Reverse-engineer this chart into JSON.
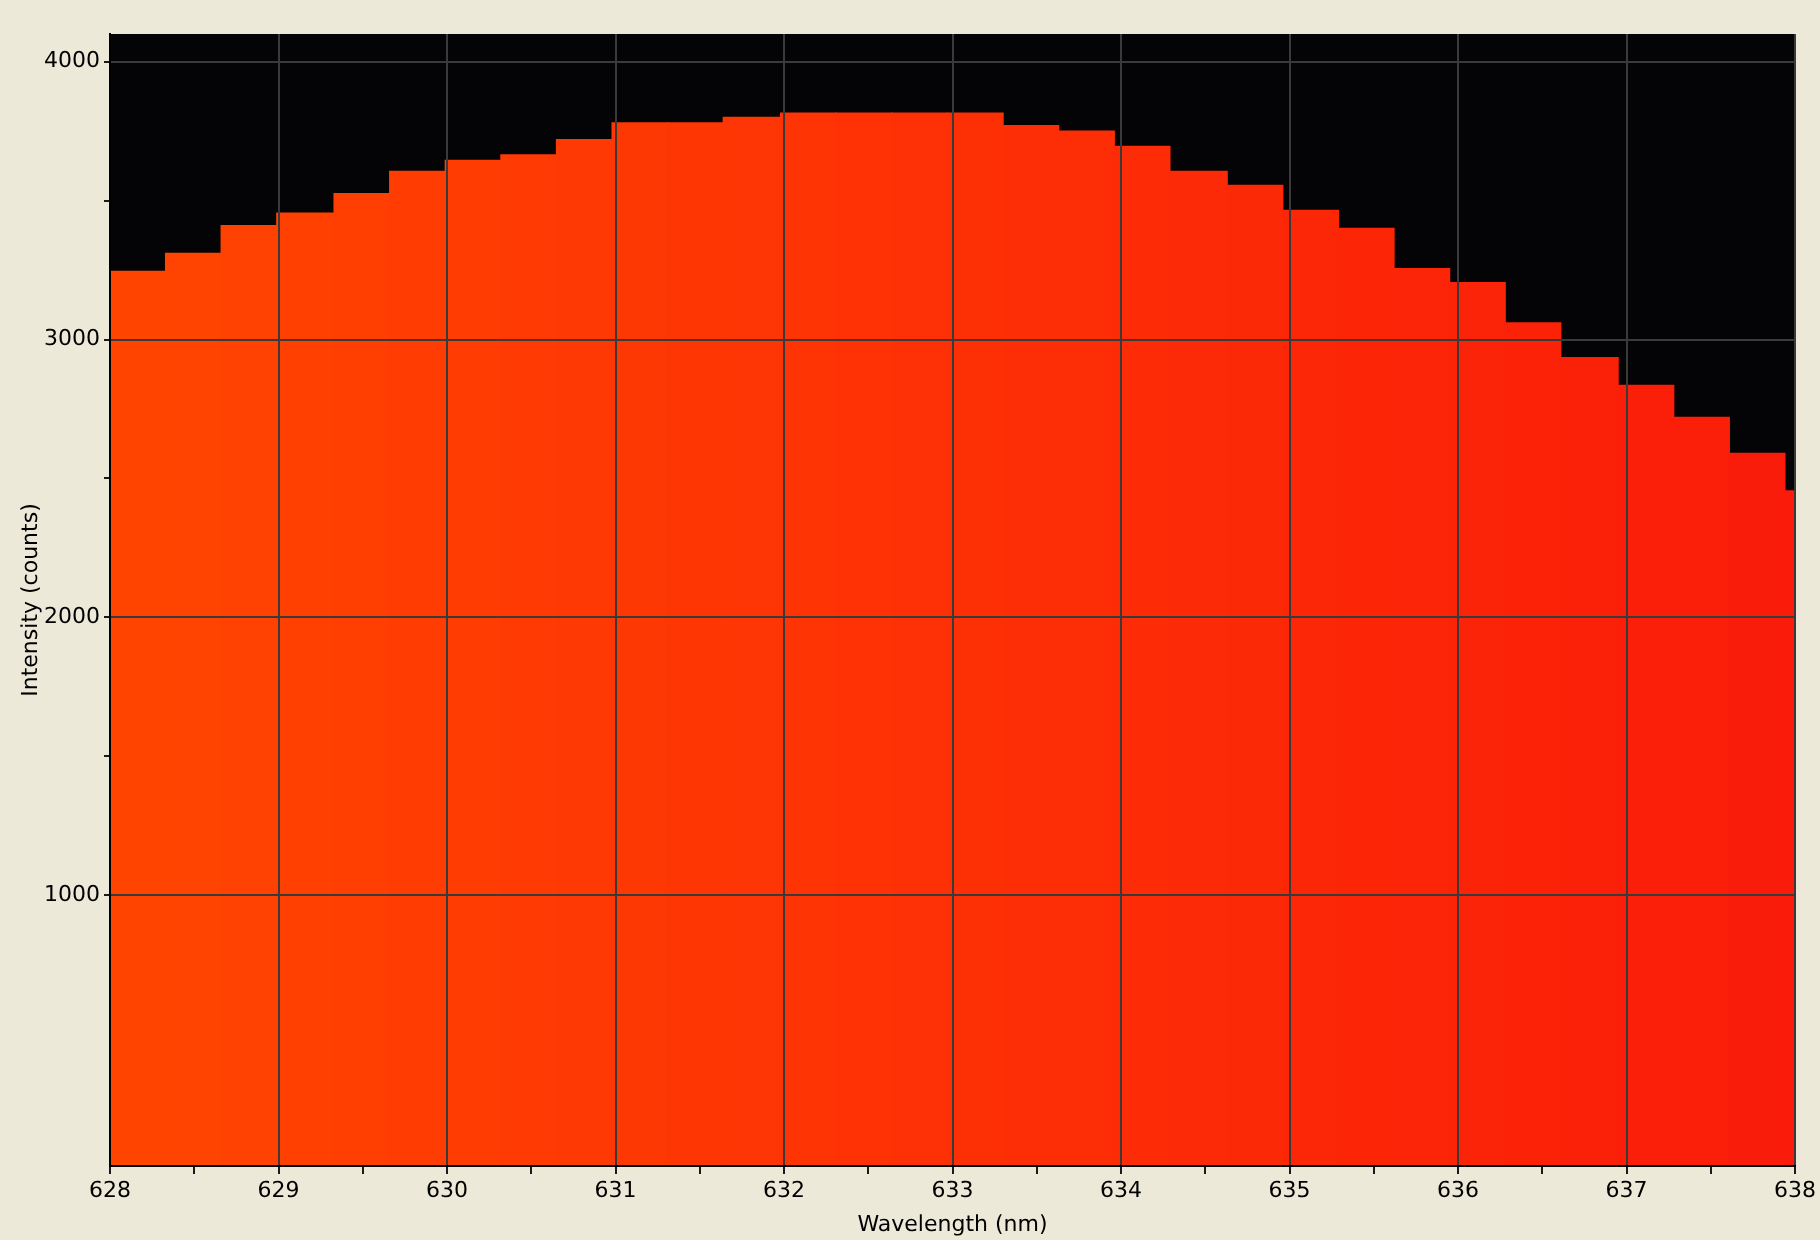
{
  "chart_data": {
    "type": "histogram",
    "xlabel": "Wavelength (nm)",
    "ylabel": "Intensity (counts)",
    "bins": [
      628,
      628.33,
      628.66,
      628.99,
      629.33,
      629.66,
      629.99,
      630.32,
      630.65,
      630.98,
      631.31,
      631.64,
      631.98,
      632.31,
      632.64,
      632.97,
      633.3,
      633.63,
      633.96,
      634.29,
      634.63,
      634.96,
      635.29,
      635.62,
      635.95,
      636.28,
      636.61,
      636.95,
      637.28,
      637.61,
      637.94,
      638
    ],
    "values": [
      3245,
      3310,
      3410,
      3455,
      3525,
      3605,
      3645,
      3665,
      3720,
      3780,
      3780,
      3800,
      3815,
      3815,
      3815,
      3815,
      3770,
      3750,
      3695,
      3605,
      3555,
      3465,
      3400,
      3255,
      3205,
      3060,
      2935,
      2835,
      2720,
      2590,
      2455
    ],
    "colors": [
      "#ff4400",
      "#ff4300",
      "#ff4101",
      "#ff4001",
      "#ff3f01",
      "#ff3d02",
      "#ff3c02",
      "#ff3a02",
      "#ff3903",
      "#fe3803",
      "#fe3603",
      "#fe3504",
      "#fe3404",
      "#fe3204",
      "#fd3105",
      "#fd3005",
      "#fd2e05",
      "#fd2d06",
      "#fd2b06",
      "#fc2a06",
      "#fc2907",
      "#fc2707",
      "#fc2607",
      "#fc2508",
      "#fb2308",
      "#fb2208",
      "#fb2109",
      "#fb1f09",
      "#fb1e09",
      "#fa1c0a",
      "#fa1b0a"
    ],
    "xlim": [
      628,
      638
    ],
    "xticks": [
      628,
      {
        "value": 628.5,
        "label": null
      },
      629,
      {
        "value": 629.5,
        "label": null
      },
      630,
      {
        "value": 630.5,
        "label": null
      },
      631,
      {
        "value": 631.5,
        "label": null
      },
      632,
      {
        "value": 632.5,
        "label": null
      },
      633,
      {
        "value": 633.5,
        "label": null
      },
      634,
      {
        "value": 634.5,
        "label": null
      },
      635,
      {
        "value": 635.5,
        "label": null
      },
      636,
      {
        "value": 636.5,
        "label": null
      },
      637,
      {
        "value": 637.5,
        "label": null
      },
      638
    ],
    "ylim": [
      25,
      4100
    ],
    "yticks": [
      1000,
      {
        "value": 1500,
        "label": null
      },
      2000,
      {
        "value": 2500,
        "label": null
      },
      3000,
      {
        "value": 3500,
        "label": null
      },
      4000
    ],
    "grid": true
  }
}
